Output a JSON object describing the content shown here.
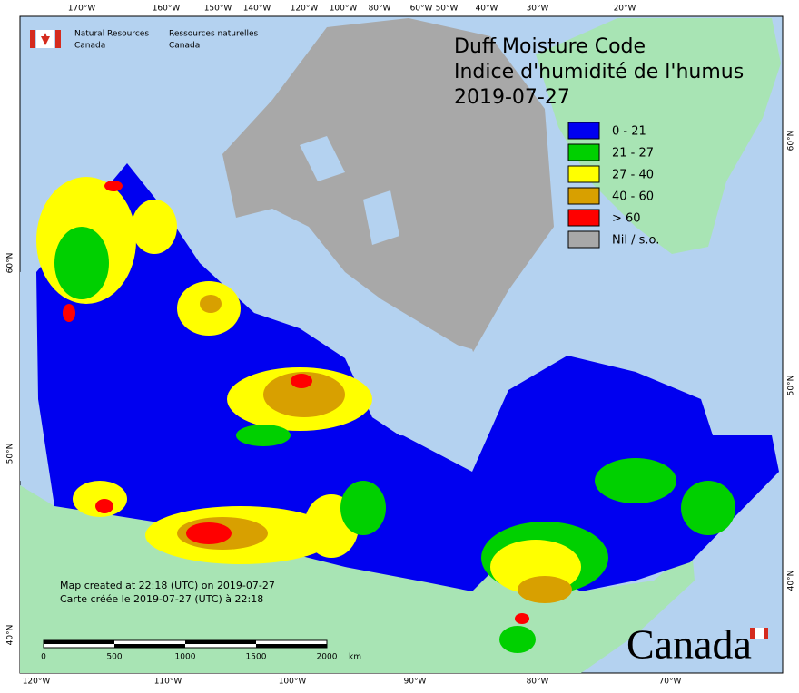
{
  "agency": {
    "en_line1": "Natural Resources",
    "en_line2": "Canada",
    "fr_line1": "Ressources naturelles",
    "fr_line2": "Canada"
  },
  "title": {
    "line1": "Duff Moisture Code",
    "line2": "Indice d'humidité de l'humus",
    "date": "2019-07-27"
  },
  "legend": [
    {
      "label": "0 - 21",
      "color": "#0000f0"
    },
    {
      "label": "21 - 27",
      "color": "#00d000"
    },
    {
      "label": "27 - 40",
      "color": "#ffff00"
    },
    {
      "label": "40 - 60",
      "color": "#d8a000"
    },
    {
      "label": "> 60",
      "color": "#ff0000"
    },
    {
      "label": "Nil / s.o.",
      "color": "#a8a8a8"
    }
  ],
  "graticule": {
    "top": [
      "170°W",
      "160°W",
      "150°W",
      "140°W",
      "120°W",
      "100°W",
      "80°W",
      "60°W",
      "50°W",
      "40°W",
      "30°W",
      "20°W"
    ],
    "bottom": [
      "120°W",
      "110°W",
      "100°W",
      "90°W",
      "80°W",
      "70°W"
    ],
    "left": [
      "60°N",
      "50°N",
      "40°N"
    ],
    "right": [
      "60°N",
      "50°N",
      "40°N"
    ]
  },
  "credits": {
    "en": "Map created at 22:18 (UTC) on 2019-07-27",
    "fr": "Carte créée le 2019-07-27 (UTC) à 22:18"
  },
  "scale_bar": [
    "0",
    "500",
    "1000",
    "1500",
    "2000",
    "km"
  ],
  "wordmark": "Canada"
}
